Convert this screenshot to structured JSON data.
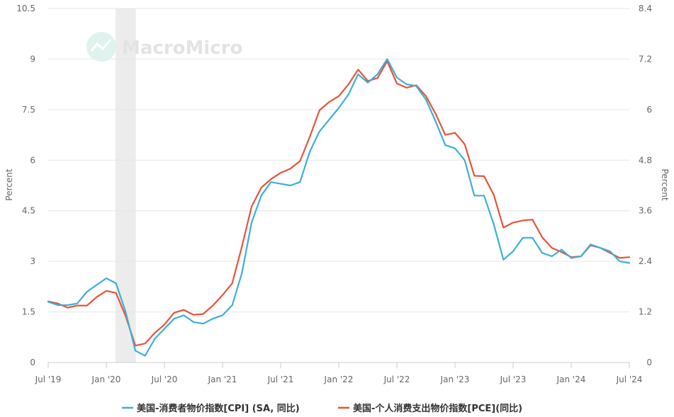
{
  "watermark": "MacroMicro",
  "colors": {
    "cpi": "#3cb0d6",
    "pce": "#e8533a",
    "recession": "#ececec"
  },
  "chart_data": {
    "type": "line",
    "x": [
      "2019-07",
      "2019-08",
      "2019-09",
      "2019-10",
      "2019-11",
      "2019-12",
      "2020-01",
      "2020-02",
      "2020-03",
      "2020-04",
      "2020-05",
      "2020-06",
      "2020-07",
      "2020-08",
      "2020-09",
      "2020-10",
      "2020-11",
      "2020-12",
      "2021-01",
      "2021-02",
      "2021-03",
      "2021-04",
      "2021-05",
      "2021-06",
      "2021-07",
      "2021-08",
      "2021-09",
      "2021-10",
      "2021-11",
      "2021-12",
      "2022-01",
      "2022-02",
      "2022-03",
      "2022-04",
      "2022-05",
      "2022-06",
      "2022-07",
      "2022-08",
      "2022-09",
      "2022-10",
      "2022-11",
      "2022-12",
      "2023-01",
      "2023-02",
      "2023-03",
      "2023-04",
      "2023-05",
      "2023-06",
      "2023-07",
      "2023-08",
      "2023-09",
      "2023-10",
      "2023-11",
      "2023-12",
      "2024-01",
      "2024-02",
      "2024-03",
      "2024-04",
      "2024-05",
      "2024-06",
      "2024-07"
    ],
    "x_tick_labels": [
      "Jul '19",
      "Jan '20",
      "Jul '20",
      "Jan '21",
      "Jul '21",
      "Jan '22",
      "Jul '22",
      "Jan '23",
      "Jul '23",
      "Jan '24",
      "Jul '24"
    ],
    "x_tick_dates": [
      "2019-07",
      "2020-01",
      "2020-07",
      "2021-01",
      "2021-07",
      "2022-01",
      "2022-07",
      "2023-01",
      "2023-07",
      "2024-01",
      "2024-07"
    ],
    "y_left": {
      "label": "Percent",
      "ticks": [
        "0",
        "1.5",
        "3",
        "4.5",
        "6",
        "7.5",
        "9",
        "10.5"
      ],
      "range": [
        0,
        10.5
      ]
    },
    "y_right": {
      "label": "Percent",
      "ticks": [
        "0",
        "1.2",
        "2.4",
        "3.6",
        "4.8",
        "6",
        "7.2",
        "8.4"
      ],
      "range": [
        0,
        8.4
      ]
    },
    "recession": [
      "2020-02",
      "2020-04"
    ],
    "series": [
      {
        "name": "美国-消费者物价指数[CPI] (SA, 同比)",
        "axis": "left",
        "values": [
          1.8,
          1.7,
          1.7,
          1.75,
          2.1,
          2.3,
          2.5,
          2.35,
          1.5,
          0.35,
          0.2,
          0.7,
          1.0,
          1.3,
          1.4,
          1.2,
          1.15,
          1.3,
          1.4,
          1.7,
          2.65,
          4.15,
          4.95,
          5.35,
          5.3,
          5.25,
          5.35,
          6.25,
          6.85,
          7.2,
          7.55,
          7.95,
          8.55,
          8.3,
          8.55,
          9.0,
          8.45,
          8.25,
          8.2,
          7.8,
          7.15,
          6.45,
          6.35,
          6.0,
          4.95,
          4.95,
          4.1,
          3.05,
          3.3,
          3.7,
          3.7,
          3.25,
          3.15,
          3.35,
          3.1,
          3.15,
          3.5,
          3.4,
          3.3,
          3.0,
          2.95
        ]
      },
      {
        "name": "美国-个人消费支出物价指数[PCE](同比)",
        "axis": "right",
        "values": [
          1.45,
          1.4,
          1.3,
          1.35,
          1.35,
          1.55,
          1.7,
          1.65,
          1.1,
          0.4,
          0.45,
          0.7,
          0.9,
          1.18,
          1.25,
          1.13,
          1.15,
          1.35,
          1.6,
          1.88,
          2.75,
          3.7,
          4.15,
          4.35,
          4.5,
          4.6,
          4.78,
          5.35,
          5.98,
          6.18,
          6.32,
          6.6,
          6.95,
          6.68,
          6.75,
          7.15,
          6.62,
          6.52,
          6.58,
          6.32,
          5.9,
          5.4,
          5.45,
          5.18,
          4.43,
          4.42,
          3.98,
          3.2,
          3.32,
          3.37,
          3.39,
          2.97,
          2.72,
          2.62,
          2.5,
          2.52,
          2.78,
          2.72,
          2.6,
          2.48,
          2.5
        ]
      }
    ]
  }
}
